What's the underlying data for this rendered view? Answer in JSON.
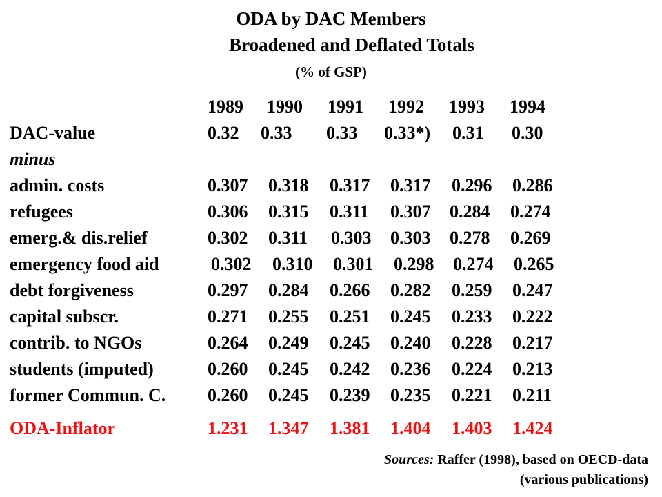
{
  "title": "ODA by DAC Members",
  "subtitle": "Broadened and Deflated Totals",
  "unit": "(% of GSP)",
  "years": [
    "1989",
    "1990",
    "1991",
    "1992",
    "1993",
    "1994"
  ],
  "rows": [
    {
      "label": "DAC-value",
      "values": [
        "0.32",
        "0.33",
        "0.33",
        "0.33*)",
        "0.31",
        "0.30"
      ]
    },
    {
      "label": "minus",
      "values": []
    },
    {
      "label": "admin. costs",
      "values": [
        "0.307",
        "0.318",
        "0.317",
        "0.317",
        "0.296",
        "0.286"
      ]
    },
    {
      "label": "refugees",
      "values": [
        "0.306",
        "0.315",
        "0.311",
        "0.307",
        "0.284",
        "0.274"
      ]
    },
    {
      "label": "emerg.& dis.relief",
      "values": [
        "0.302",
        "0.311",
        "0.303",
        "0.303",
        "0.278",
        "0.269"
      ]
    },
    {
      "label": "emergency food aid",
      "values": [
        "0.302",
        "0.310",
        "0.301",
        "0.298",
        "0.274",
        "0.265"
      ]
    },
    {
      "label": "debt forgiveness",
      "values": [
        "0.297",
        "0.284",
        "0.266",
        "0.282",
        "0.259",
        "0.247"
      ]
    },
    {
      "label": "capital subscr.",
      "values": [
        "0.271",
        "0.255",
        "0.251",
        "0.245",
        "0.233",
        "0.222"
      ]
    },
    {
      "label": "contrib. to NGOs",
      "values": [
        "0.264",
        "0.249",
        "0.245",
        "0.240",
        "0.228",
        "0.217"
      ]
    },
    {
      "label": "students (imputed)",
      "values": [
        "0.260",
        "0.245",
        "0.242",
        "0.236",
        "0.224",
        "0.213"
      ]
    },
    {
      "label": "former Commun. C.",
      "values": [
        "0.260",
        "0.245",
        "0.239",
        "0.235",
        "0.221",
        "0.211"
      ]
    }
  ],
  "inflator": {
    "label": "ODA-Inflator",
    "values": [
      "1.231",
      "1.347",
      "1.381",
      "1.404",
      "1.403",
      "1.424"
    ]
  },
  "sources": {
    "lead": "Sources:",
    "line1": "Raffer (1998), based on OECD-data",
    "line2": "(various publications)"
  },
  "colors": {
    "inflator": "#ee1111",
    "text": "#000000"
  }
}
